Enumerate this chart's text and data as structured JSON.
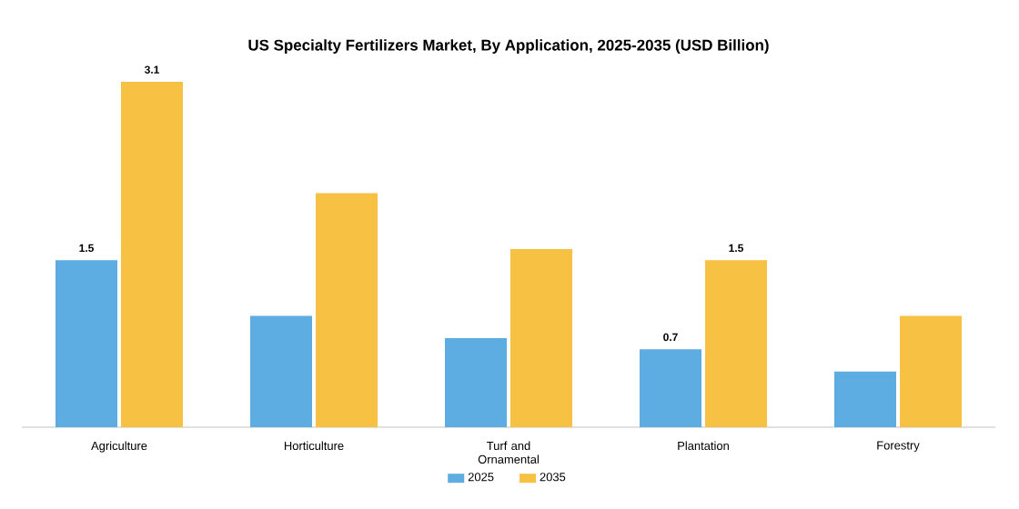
{
  "chart_data": {
    "type": "bar",
    "title": "US Specialty Fertilizers Market, By Application, 2025-2035 (USD Billion)",
    "categories": [
      "Agriculture",
      "Horticulture",
      "Turf and Ornamental",
      "Plantation",
      "Forestry"
    ],
    "series": [
      {
        "name": "2025",
        "color": "#5dade2",
        "values": [
          1.5,
          1.0,
          0.8,
          0.7,
          0.5
        ],
        "value_labels": [
          "1.5",
          null,
          null,
          "0.7",
          null
        ]
      },
      {
        "name": "2035",
        "color": "#f7c244",
        "values": [
          3.1,
          2.1,
          1.6,
          1.5,
          1.0
        ],
        "value_labels": [
          "3.1",
          null,
          null,
          "1.5",
          null
        ]
      }
    ],
    "ylim": [
      0,
      3.1
    ],
    "tick_labels": "x",
    "legend": "bottom"
  }
}
